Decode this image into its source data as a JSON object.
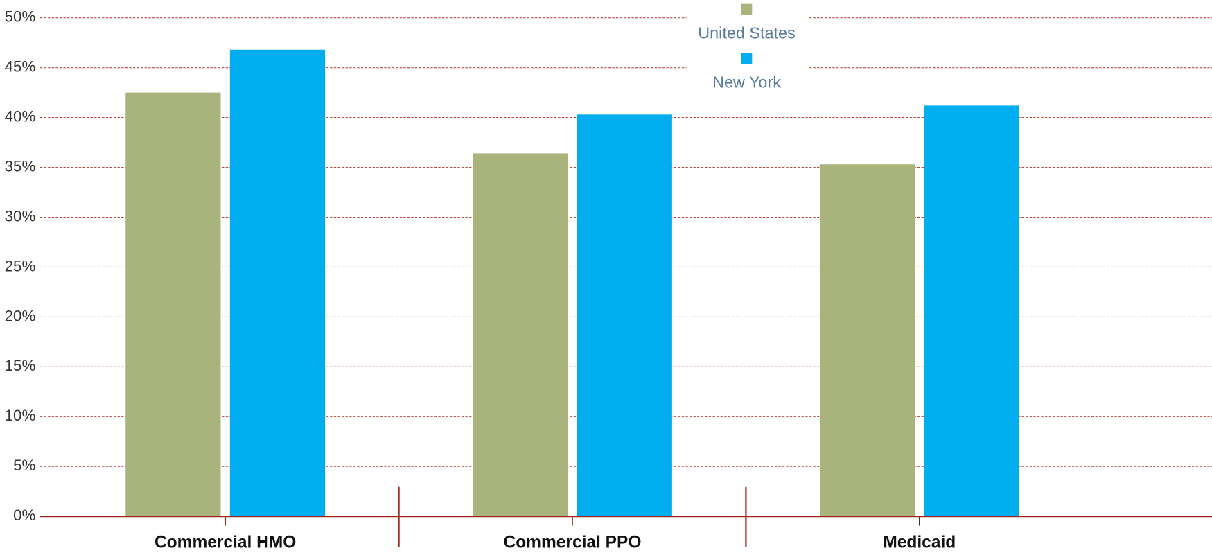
{
  "chart_data": {
    "type": "bar",
    "categories": [
      "Commercial HMO",
      "Commercial PPO",
      "Medicaid"
    ],
    "series": [
      {
        "name": "United States",
        "color": "#a9b47c",
        "values": [
          42.5,
          36.4,
          35.3
        ]
      },
      {
        "name": "New York",
        "color": "#00aeef",
        "values": [
          46.8,
          40.3,
          41.2
        ]
      }
    ],
    "ylim": [
      0,
      50
    ],
    "yticks": [
      {
        "value": 0,
        "label": "0%"
      },
      {
        "value": 5,
        "label": "5%"
      },
      {
        "value": 10,
        "label": "10%"
      },
      {
        "value": 15,
        "label": "15%"
      },
      {
        "value": 20,
        "label": "20%"
      },
      {
        "value": 25,
        "label": "25%"
      },
      {
        "value": 30,
        "label": "30%"
      },
      {
        "value": 35,
        "label": "35%"
      },
      {
        "value": 40,
        "label": "40%"
      },
      {
        "value": 45,
        "label": "45%"
      },
      {
        "value": 50,
        "label": "50%"
      }
    ],
    "grid": true,
    "legend": "top"
  }
}
